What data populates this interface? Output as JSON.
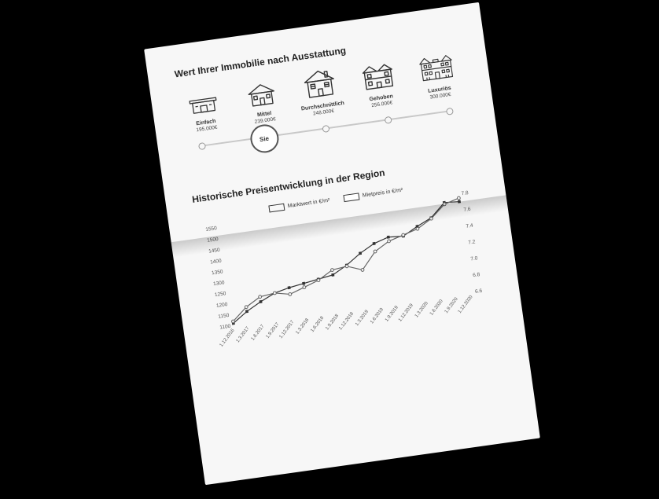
{
  "equipment_section": {
    "title": "Wert Ihrer Immobilie nach Ausstattung",
    "items": [
      {
        "label": "Einfach",
        "price": "195.000€"
      },
      {
        "label": "Mittel",
        "price": "239.000€"
      },
      {
        "label": "Durchschnittlich",
        "price": "248.000€"
      },
      {
        "label": "Gehoben",
        "price": "256.000€"
      },
      {
        "label": "Luxuriös",
        "price": "300.000€"
      }
    ],
    "slider": {
      "track_color": "#c8c8c8",
      "tick_positions_pct": [
        0,
        25,
        50,
        75,
        100
      ],
      "sie_label": "Sie",
      "sie_position_pct": 25
    }
  },
  "price_chart": {
    "title": "Historische Preisentwicklung in der Region",
    "type": "line",
    "legend": [
      {
        "label": "Marktwert in €/m²",
        "color": "#333333",
        "marker": "filled"
      },
      {
        "label": "Mietpreis in €/m²",
        "color": "#666666",
        "marker": "hollow"
      }
    ],
    "x_labels": [
      "1.12.2016",
      "1.3.2017",
      "1.6.2017",
      "1.9.2017",
      "1.12.2017",
      "1.3.2018",
      "1.6.2018",
      "1.9.2018",
      "1.12.2018",
      "1.3.2019",
      "1.6.2019",
      "1.9.2019",
      "1.12.2019",
      "1.3.2020",
      "1.6.2020",
      "1.9.2020",
      "1.12.2020"
    ],
    "y_left": {
      "label": "",
      "min": 1100,
      "max": 1550,
      "step": 50
    },
    "y_right": {
      "label": "",
      "min": 6.6,
      "max": 7.8,
      "step": 0.2
    },
    "series_market": [
      1110,
      1155,
      1190,
      1220,
      1235,
      1245,
      1255,
      1265,
      1300,
      1345,
      1380,
      1400,
      1395,
      1430,
      1460,
      1520,
      1515
    ],
    "series_rent": [
      6.65,
      6.8,
      6.9,
      6.92,
      6.88,
      6.94,
      7.0,
      7.1,
      7.12,
      7.05,
      7.25,
      7.35,
      7.4,
      7.45,
      7.55,
      7.7,
      7.75
    ],
    "colors": {
      "grid": "#dddddd",
      "axis_text": "#555555",
      "background": "#f7f7f7",
      "market_line": "#333333",
      "rent_line": "#666666"
    },
    "style": {
      "title_fontsize": 12,
      "label_fontsize": 6.5,
      "line_width": 1.2,
      "marker_radius": 1.8
    }
  }
}
